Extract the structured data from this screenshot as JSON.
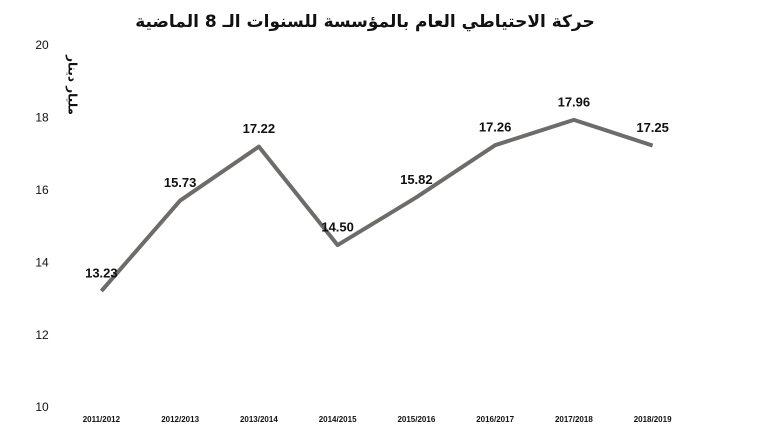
{
  "chart_data": {
    "type": "line",
    "title": "حركة الاحتياطي العام بالمؤسسة للسنوات الـ 8 الماضية",
    "y_label": "مليار دينار",
    "categories": [
      "2011/2012",
      "2012/2013",
      "2013/2014",
      "2014/2015",
      "2015/2016",
      "2016/2017",
      "2017/2018",
      "2018/2019"
    ],
    "values": [
      13.23,
      15.73,
      17.22,
      14.5,
      15.82,
      17.26,
      17.96,
      17.25
    ],
    "value_labels": [
      "13.23",
      "15.73",
      "17.22",
      "14.50",
      "15.82",
      "17.26",
      "17.96",
      "17.25"
    ],
    "color": "#6f6b69",
    "ylim": [
      10,
      20
    ],
    "yticks": [
      10,
      12,
      14,
      16,
      18,
      20
    ],
    "grid": false
  }
}
